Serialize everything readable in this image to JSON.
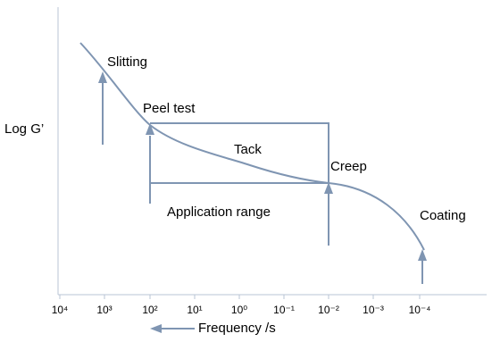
{
  "y_axis_label": "Log G’",
  "x_axis_label": "Frequency /s",
  "x_tick_labels": [
    "10⁴",
    "10³",
    "10²",
    "10¹",
    "10⁰",
    "10⁻¹",
    "10⁻²",
    "10⁻³",
    "10⁻⁴"
  ],
  "annotations": {
    "slitting": "Slitting",
    "peel_test": "Peel test",
    "tack": "Tack",
    "creep": "Creep",
    "application_range": "Application range",
    "coating": "Coating"
  }
}
